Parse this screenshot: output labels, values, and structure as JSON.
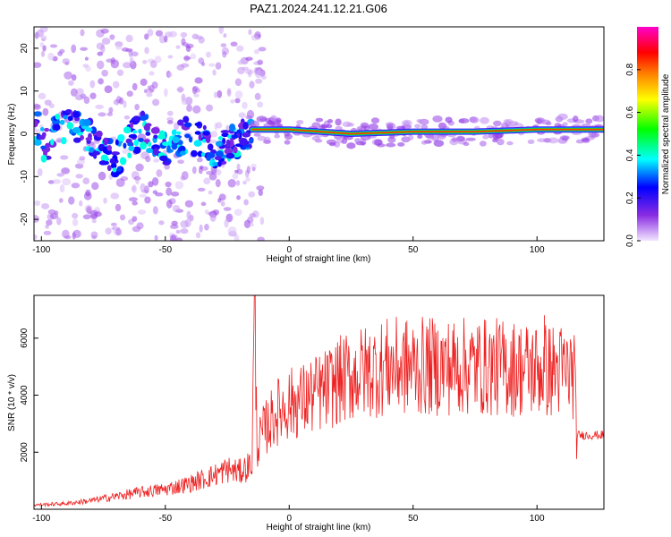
{
  "figure_title": "PAZ1.2024.241.12.21.G06",
  "chart_data": [
    {
      "type": "heatmap",
      "title": "PAZ1.2024.241.12.21.G06",
      "xlabel": "Height of straight line (km)",
      "ylabel": "Frequency (Hz)",
      "xlim": [
        -103,
        127
      ],
      "ylim": [
        -25,
        25
      ],
      "x_ticks": [
        -100,
        -50,
        0,
        50,
        100
      ],
      "y_ticks": [
        -20,
        -10,
        0,
        10,
        20
      ],
      "colorbar": {
        "label": "Normalized spectral amplitude",
        "range": [
          0,
          1
        ],
        "ticks": [
          "0.0",
          "0.2",
          "0.4",
          "0.6",
          "0.8"
        ],
        "colormap": [
          "#f2e6ff",
          "#8a2be2",
          "#0000ff",
          "#00ffff",
          "#00ff00",
          "#ffff00",
          "#ff8000",
          "#ff0000",
          "#ff00cc"
        ]
      },
      "ridge": {
        "description_points": [
          {
            "x": -100,
            "y": -3
          },
          {
            "x": -90,
            "y": 2
          },
          {
            "x": -80,
            "y": -1
          },
          {
            "x": -70,
            "y": -6
          },
          {
            "x": -60,
            "y": 1
          },
          {
            "x": -50,
            "y": -3
          },
          {
            "x": -40,
            "y": 0
          },
          {
            "x": -30,
            "y": -4
          },
          {
            "x": -20,
            "y": -1
          },
          {
            "x": -15,
            "y": 1
          },
          {
            "x": 0,
            "y": 1
          },
          {
            "x": 25,
            "y": 0
          },
          {
            "x": 50,
            "y": 0.5
          },
          {
            "x": 75,
            "y": 0.5
          },
          {
            "x": 100,
            "y": 1
          },
          {
            "x": 125,
            "y": 1
          }
        ],
        "peak_amplitude_region_km": [
          -15,
          127
        ]
      },
      "grid": false
    },
    {
      "type": "line",
      "xlabel": "Height of straight line (km)",
      "ylabel": "SNR (10 * v/v)",
      "xlim": [
        -103,
        127
      ],
      "ylim": [
        0,
        7500
      ],
      "x_ticks": [
        -100,
        -50,
        0,
        50,
        100
      ],
      "y_ticks": [
        2000,
        4000,
        6000
      ],
      "series": [
        {
          "color": "#ee2222",
          "x": [
            -103,
            -90,
            -80,
            -70,
            -60,
            -50,
            -40,
            -30,
            -25,
            -20,
            -15,
            -14,
            -13,
            -10,
            -5,
            0,
            5,
            10,
            15,
            20,
            30,
            40,
            50,
            60,
            70,
            80,
            90,
            100,
            110,
            115,
            116,
            120,
            127
          ],
          "y": [
            150,
            200,
            300,
            450,
            600,
            700,
            900,
            1200,
            1400,
            1300,
            1600,
            7400,
            2200,
            2800,
            3400,
            3700,
            3800,
            4000,
            4200,
            4500,
            4800,
            5000,
            5000,
            5000,
            5000,
            5000,
            4950,
            4900,
            4850,
            4800,
            2600,
            2600,
            2600
          ]
        }
      ],
      "annotations": [
        {
          "x": 103,
          "y": 6800,
          "text": ""
        }
      ],
      "grid": false
    }
  ]
}
